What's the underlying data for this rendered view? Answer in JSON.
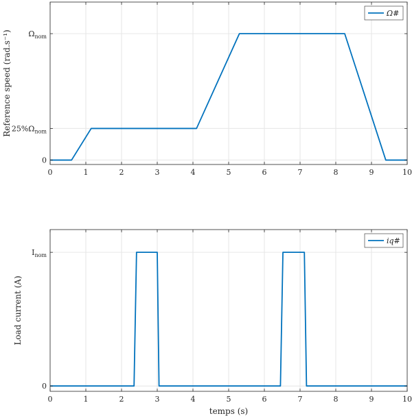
{
  "chart_data": [
    {
      "type": "line",
      "xlabel": "",
      "ylabel": "Reference speed (rad.s⁻¹)",
      "xlim": [
        0,
        10
      ],
      "ylim": [
        -0.035,
        1.25
      ],
      "grid": true,
      "legend_position": "top-right",
      "x_ticks": [
        0,
        1,
        2,
        3,
        4,
        5,
        6,
        7,
        8,
        9,
        10
      ],
      "x_tick_labels": [
        "0",
        "1",
        "2",
        "3",
        "4",
        "5",
        "6",
        "7",
        "8",
        "9",
        "10"
      ],
      "y_ticks": [
        0,
        0.25,
        1
      ],
      "y_tick_labels": [
        "0",
        "25%Ω_nom",
        "Ω_nom"
      ],
      "series": [
        {
          "name": "Ω#",
          "color": "#0072BD",
          "x": [
            0,
            0.6,
            1.15,
            4.1,
            5.3,
            8.25,
            9.4,
            10
          ],
          "y": [
            0,
            0,
            0.25,
            0.25,
            1,
            1,
            0,
            0
          ]
        }
      ]
    },
    {
      "type": "line",
      "xlabel": "temps (s)",
      "ylabel": "Load current (A)",
      "xlim": [
        0,
        10
      ],
      "ylim": [
        -0.04,
        1.17
      ],
      "grid": true,
      "legend_position": "top-right",
      "x_ticks": [
        0,
        1,
        2,
        3,
        4,
        5,
        6,
        7,
        8,
        9,
        10
      ],
      "x_tick_labels": [
        "0",
        "1",
        "2",
        "3",
        "4",
        "5",
        "6",
        "7",
        "8",
        "9",
        "10"
      ],
      "y_ticks": [
        0,
        1
      ],
      "y_tick_labels": [
        "0",
        "I_nom"
      ],
      "series": [
        {
          "name": "iq#",
          "color": "#0072BD",
          "x": [
            0,
            2.35,
            2.42,
            3.0,
            3.05,
            6.45,
            6.52,
            7.12,
            7.18,
            10
          ],
          "y": [
            0,
            0,
            1,
            1,
            0,
            0,
            1,
            1,
            0,
            0
          ]
        }
      ]
    }
  ]
}
